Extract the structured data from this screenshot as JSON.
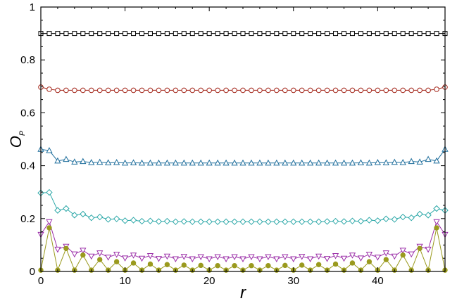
{
  "chart_data": {
    "type": "line",
    "title": "",
    "xlabel": "r",
    "ylabel": "O",
    "ylabel_subscript": "P",
    "xlim": [
      0,
      48
    ],
    "ylim": [
      0,
      1
    ],
    "xticks": [
      0,
      10,
      20,
      30,
      40
    ],
    "yticks": [
      0,
      0.2,
      0.4,
      0.6,
      0.8,
      1
    ],
    "ytick_labels": [
      "0",
      "0.2",
      "0.4",
      "0.6",
      "0.8",
      "1"
    ],
    "grid": false,
    "legend": "none",
    "series": [
      {
        "marker": "square",
        "color": "#000000",
        "x": [
          0,
          1,
          2,
          3,
          4,
          5,
          6,
          7,
          8,
          9,
          10,
          11,
          12,
          13,
          14,
          15,
          16,
          17,
          18,
          19,
          20,
          21,
          22,
          23,
          24,
          25,
          26,
          27,
          28,
          29,
          30,
          31,
          32,
          33,
          34,
          35,
          36,
          37,
          38,
          39,
          40,
          41,
          42,
          43,
          44,
          45,
          46,
          47,
          48
        ],
        "y": [
          0.9,
          0.9,
          0.9,
          0.9,
          0.9,
          0.9,
          0.9,
          0.9,
          0.9,
          0.9,
          0.9,
          0.9,
          0.9,
          0.9,
          0.9,
          0.9,
          0.9,
          0.9,
          0.9,
          0.9,
          0.9,
          0.9,
          0.9,
          0.9,
          0.9,
          0.9,
          0.9,
          0.9,
          0.9,
          0.9,
          0.9,
          0.9,
          0.9,
          0.9,
          0.9,
          0.9,
          0.9,
          0.9,
          0.9,
          0.9,
          0.9,
          0.9,
          0.9,
          0.9,
          0.9,
          0.9,
          0.9,
          0.9,
          0.9
        ]
      },
      {
        "marker": "circle",
        "color": "#a52a1e",
        "x": [
          0,
          1,
          2,
          3,
          4,
          5,
          6,
          7,
          8,
          9,
          10,
          11,
          12,
          13,
          14,
          15,
          16,
          17,
          18,
          19,
          20,
          21,
          22,
          23,
          24,
          25,
          26,
          27,
          28,
          29,
          30,
          31,
          32,
          33,
          34,
          35,
          36,
          37,
          38,
          39,
          40,
          41,
          42,
          43,
          44,
          45,
          46,
          47,
          48
        ],
        "y": [
          0.697,
          0.689,
          0.685,
          0.685,
          0.685,
          0.685,
          0.685,
          0.685,
          0.685,
          0.685,
          0.685,
          0.685,
          0.685,
          0.685,
          0.685,
          0.685,
          0.685,
          0.685,
          0.685,
          0.685,
          0.685,
          0.685,
          0.685,
          0.685,
          0.685,
          0.685,
          0.685,
          0.685,
          0.685,
          0.685,
          0.685,
          0.685,
          0.685,
          0.685,
          0.685,
          0.685,
          0.685,
          0.685,
          0.685,
          0.685,
          0.685,
          0.685,
          0.685,
          0.685,
          0.685,
          0.685,
          0.685,
          0.689,
          0.697
        ]
      },
      {
        "marker": "triangle-up",
        "color": "#1f6e9c",
        "x": [
          0,
          1,
          2,
          3,
          4,
          5,
          6,
          7,
          8,
          9,
          10,
          11,
          12,
          13,
          14,
          15,
          16,
          17,
          18,
          19,
          20,
          21,
          22,
          23,
          24,
          25,
          26,
          27,
          28,
          29,
          30,
          31,
          32,
          33,
          34,
          35,
          36,
          37,
          38,
          39,
          40,
          41,
          42,
          43,
          44,
          45,
          46,
          47,
          48
        ],
        "y": [
          0.462,
          0.457,
          0.418,
          0.424,
          0.414,
          0.416,
          0.412,
          0.413,
          0.411,
          0.412,
          0.41,
          0.411,
          0.41,
          0.41,
          0.41,
          0.41,
          0.41,
          0.41,
          0.41,
          0.41,
          0.41,
          0.41,
          0.41,
          0.41,
          0.41,
          0.41,
          0.41,
          0.41,
          0.41,
          0.41,
          0.41,
          0.41,
          0.41,
          0.41,
          0.41,
          0.41,
          0.41,
          0.41,
          0.411,
          0.41,
          0.412,
          0.411,
          0.413,
          0.412,
          0.416,
          0.414,
          0.424,
          0.418,
          0.462
        ]
      },
      {
        "marker": "diamond",
        "color": "#2aa7a7",
        "x": [
          0,
          1,
          2,
          3,
          4,
          5,
          6,
          7,
          8,
          9,
          10,
          11,
          12,
          13,
          14,
          15,
          16,
          17,
          18,
          19,
          20,
          21,
          22,
          23,
          24,
          25,
          26,
          27,
          28,
          29,
          30,
          31,
          32,
          33,
          34,
          35,
          36,
          37,
          38,
          39,
          40,
          41,
          42,
          43,
          44,
          45,
          46,
          47,
          48
        ],
        "y": [
          0.297,
          0.299,
          0.231,
          0.238,
          0.213,
          0.217,
          0.203,
          0.206,
          0.197,
          0.199,
          0.192,
          0.194,
          0.19,
          0.191,
          0.189,
          0.19,
          0.188,
          0.189,
          0.188,
          0.188,
          0.188,
          0.188,
          0.188,
          0.188,
          0.188,
          0.188,
          0.188,
          0.188,
          0.188,
          0.188,
          0.188,
          0.188,
          0.188,
          0.188,
          0.189,
          0.19,
          0.189,
          0.191,
          0.19,
          0.194,
          0.192,
          0.199,
          0.197,
          0.206,
          0.203,
          0.217,
          0.213,
          0.238,
          0.231
        ]
      },
      {
        "marker": "triangle-down",
        "color": "#9b2fa8",
        "x": [
          0,
          1,
          2,
          3,
          4,
          5,
          6,
          7,
          8,
          9,
          10,
          11,
          12,
          13,
          14,
          15,
          16,
          17,
          18,
          19,
          20,
          21,
          22,
          23,
          24,
          25,
          26,
          27,
          28,
          29,
          30,
          31,
          32,
          33,
          34,
          35,
          36,
          37,
          38,
          39,
          40,
          41,
          42,
          43,
          44,
          45,
          46,
          47,
          48
        ],
        "y": [
          0.14,
          0.188,
          0.084,
          0.095,
          0.066,
          0.08,
          0.058,
          0.07,
          0.054,
          0.065,
          0.051,
          0.062,
          0.05,
          0.06,
          0.049,
          0.058,
          0.048,
          0.057,
          0.048,
          0.056,
          0.048,
          0.056,
          0.048,
          0.056,
          0.048,
          0.056,
          0.048,
          0.056,
          0.048,
          0.056,
          0.048,
          0.057,
          0.048,
          0.058,
          0.049,
          0.06,
          0.05,
          0.062,
          0.051,
          0.065,
          0.054,
          0.07,
          0.058,
          0.08,
          0.066,
          0.095,
          0.084,
          0.188,
          0.14
        ]
      },
      {
        "marker": "filled-circle",
        "color": "#9a9a1e",
        "x": [
          0,
          1,
          2,
          3,
          4,
          5,
          6,
          7,
          8,
          9,
          10,
          11,
          12,
          13,
          14,
          15,
          16,
          17,
          18,
          19,
          20,
          21,
          22,
          23,
          24,
          25,
          26,
          27,
          28,
          29,
          30,
          31,
          32,
          33,
          34,
          35,
          36,
          37,
          38,
          39,
          40,
          41,
          42,
          43,
          44,
          45,
          46,
          47,
          48
        ],
        "y": [
          0.005,
          0.165,
          0.005,
          0.087,
          0.005,
          0.062,
          0.005,
          0.045,
          0.005,
          0.037,
          0.005,
          0.032,
          0.005,
          0.028,
          0.005,
          0.026,
          0.005,
          0.024,
          0.005,
          0.023,
          0.005,
          0.022,
          0.005,
          0.022,
          0.005,
          0.022,
          0.005,
          0.022,
          0.005,
          0.023,
          0.005,
          0.024,
          0.005,
          0.026,
          0.005,
          0.028,
          0.005,
          0.032,
          0.005,
          0.037,
          0.005,
          0.045,
          0.005,
          0.062,
          0.005,
          0.087,
          0.005,
          0.165,
          0.005
        ]
      }
    ]
  }
}
